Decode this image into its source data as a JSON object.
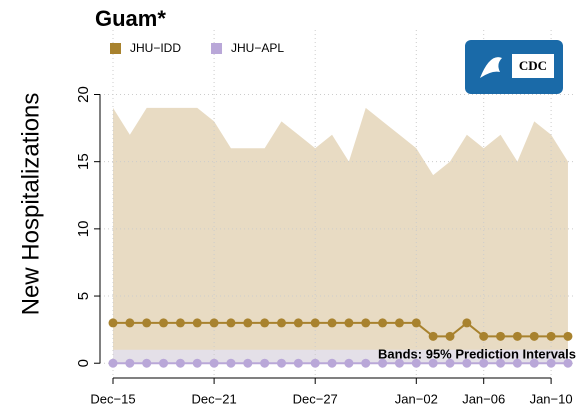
{
  "chart_data": {
    "type": "line",
    "title": "Guam*",
    "y_label": "New Hospitalizations",
    "annotation": "Bands: 95% Prediction Intervals",
    "categories": [
      "Dec−15",
      null,
      null,
      null,
      null,
      null,
      "Dec−21",
      null,
      null,
      null,
      null,
      null,
      "Dec−27",
      null,
      null,
      null,
      null,
      null,
      "Jan−02",
      null,
      null,
      null,
      "Jan−06",
      null,
      null,
      null,
      "Jan−10",
      null
    ],
    "series": [
      {
        "name": "JHU−IDD",
        "color": "#a8822e",
        "band_color": "#e8dbc3",
        "values": [
          3,
          3,
          3,
          3,
          3,
          3,
          3,
          3,
          3,
          3,
          3,
          3,
          3,
          3,
          3,
          3,
          3,
          3,
          3,
          2,
          2,
          3,
          2,
          2,
          2,
          2,
          2,
          2
        ],
        "upper": [
          19,
          17,
          19,
          19,
          19,
          19,
          18,
          16,
          16,
          16,
          18,
          17,
          16,
          17,
          15,
          19,
          18,
          17,
          16,
          14,
          15,
          17,
          16,
          17,
          15,
          18,
          17,
          15
        ],
        "lower": [
          0,
          0,
          0,
          0,
          0,
          0,
          0,
          0,
          0,
          0,
          0,
          0,
          0,
          0,
          0,
          0,
          0,
          0,
          0,
          0,
          0,
          0,
          0,
          0,
          0,
          0,
          0,
          0
        ]
      },
      {
        "name": "JHU−APL",
        "color": "#b9a7d8",
        "band_color": "#e4e0e8",
        "values": [
          0,
          0,
          0,
          0,
          0,
          0,
          0,
          0,
          0,
          0,
          0,
          0,
          0,
          0,
          0,
          0,
          0,
          0,
          0,
          0,
          0,
          0,
          0,
          0,
          0,
          0,
          0,
          0
        ],
        "upper": [
          1,
          1,
          1,
          1,
          1,
          1,
          1,
          1,
          1,
          1,
          1,
          1,
          1,
          1,
          1,
          1,
          1,
          1,
          1,
          1,
          1,
          1,
          1,
          1,
          1,
          1,
          1,
          1
        ],
        "lower": [
          0,
          0,
          0,
          0,
          0,
          0,
          0,
          0,
          0,
          0,
          0,
          0,
          0,
          0,
          0,
          0,
          0,
          0,
          0,
          0,
          0,
          0,
          0,
          0,
          0,
          0,
          0,
          0
        ]
      }
    ],
    "ylim": [
      -1.1,
      24.8
    ],
    "yticks": [
      0,
      5,
      10,
      15,
      20
    ],
    "grid": true,
    "legend": "top-left"
  }
}
